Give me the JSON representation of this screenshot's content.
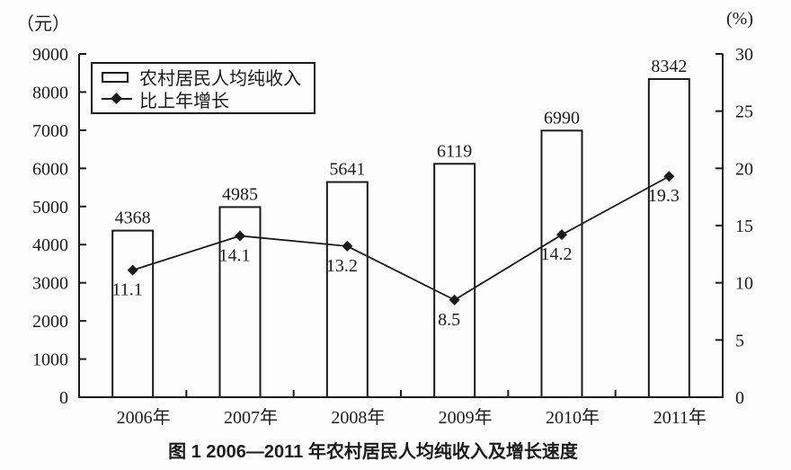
{
  "figure": {
    "background": "#fdfdfd",
    "ink_color": "#1b1b1b"
  },
  "legend": {
    "items": [
      {
        "label": "农村居民人均纯收入",
        "icon": "bar-swatch-icon"
      },
      {
        "label": "比上年增长",
        "icon": "line-diamond-icon"
      }
    ]
  },
  "chart_data": {
    "type": "bar",
    "subtype": "bar-line-combo",
    "title": "图 1  2006—2011 年农村居民人均纯收入及增长速度",
    "categories": [
      "2006年",
      "2007年",
      "2008年",
      "2009年",
      "2010年",
      "2011年"
    ],
    "series": [
      {
        "name": "农村居民人均纯收入",
        "type": "bar",
        "axis": "left",
        "values": [
          4368,
          4985,
          5641,
          6119,
          6990,
          8342
        ]
      },
      {
        "name": "比上年增长",
        "type": "line",
        "axis": "right",
        "marker": "diamond",
        "values": [
          11.1,
          14.1,
          13.2,
          8.5,
          14.2,
          19.3
        ]
      }
    ],
    "left_axis": {
      "label": "（元）",
      "min": 0,
      "max": 9000,
      "step": 1000
    },
    "right_axis": {
      "label": "(%)",
      "min": 0,
      "max": 30,
      "step": 5
    },
    "grid": false,
    "legend_position": "top-left-inside"
  }
}
